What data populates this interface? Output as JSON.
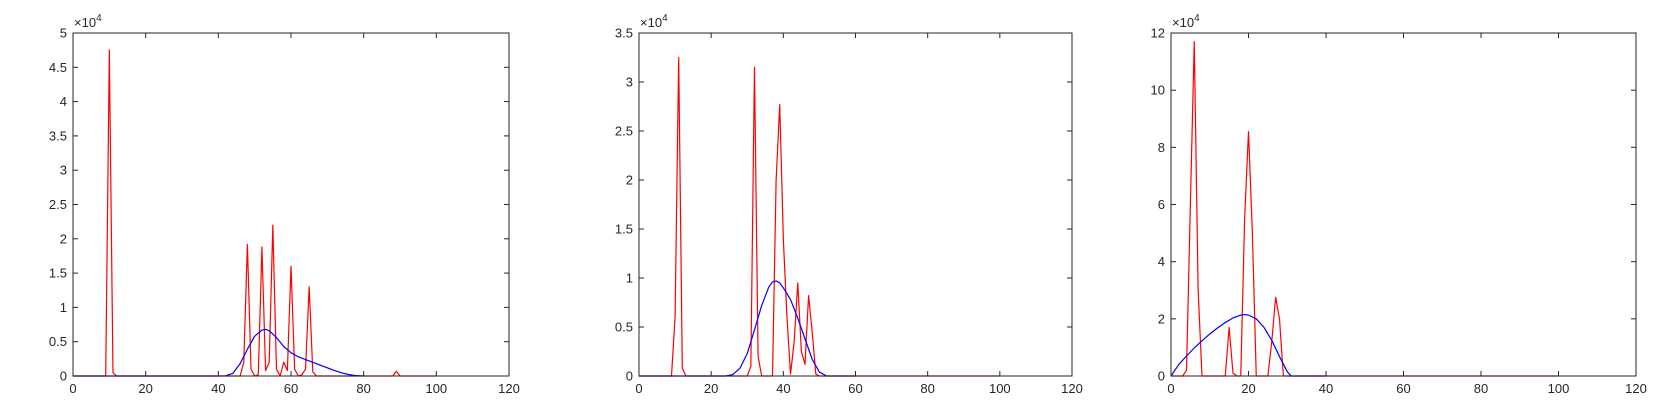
{
  "chart_data": [
    {
      "type": "line",
      "xlim": [
        0,
        120
      ],
      "ylim": [
        0,
        50000
      ],
      "xticks": [
        0,
        20,
        40,
        60,
        80,
        100,
        120
      ],
      "yticks": [
        0,
        5000,
        10000,
        15000,
        20000,
        25000,
        30000,
        35000,
        40000,
        45000,
        50000
      ],
      "xtick_labels": [
        "0",
        "20",
        "40",
        "60",
        "80",
        "100",
        "120"
      ],
      "ytick_labels": [
        "0",
        "0.5",
        "1",
        "1.5",
        "2",
        "2.5",
        "3",
        "3.5",
        "4",
        "4.5",
        "5"
      ],
      "y_exponent_base": "×10",
      "y_exponent_power": "4",
      "grid": false,
      "series": [
        {
          "color": "#ff0000",
          "x": [
            0,
            9,
            10,
            11,
            12,
            13,
            46,
            47,
            48,
            49,
            50,
            51,
            52,
            53,
            54,
            55,
            56,
            57,
            58,
            59,
            60,
            61,
            62,
            63,
            64,
            65,
            66,
            67,
            88,
            89,
            90,
            100
          ],
          "y": [
            0,
            0,
            47500,
            500,
            0,
            0,
            0,
            2000,
            19200,
            1000,
            0,
            200,
            18800,
            800,
            2000,
            22000,
            1000,
            0,
            2000,
            800,
            16000,
            1000,
            0,
            200,
            1000,
            13000,
            600,
            0,
            0,
            700,
            0,
            0
          ]
        },
        {
          "color": "#0000ff",
          "x": [
            0,
            40,
            42,
            44,
            46,
            48,
            50,
            52,
            53,
            54,
            56,
            58,
            60,
            62,
            64,
            66,
            68,
            70,
            72,
            74,
            76,
            78,
            80
          ],
          "y": [
            0,
            0,
            30,
            400,
            1800,
            3900,
            5800,
            6700,
            6800,
            6600,
            5600,
            4300,
            3400,
            2800,
            2400,
            2000,
            1600,
            1200,
            800,
            450,
            200,
            50,
            0
          ]
        }
      ]
    },
    {
      "type": "line",
      "xlim": [
        0,
        120
      ],
      "ylim": [
        0,
        35000
      ],
      "xticks": [
        0,
        20,
        40,
        60,
        80,
        100,
        120
      ],
      "yticks": [
        0,
        5000,
        10000,
        15000,
        20000,
        25000,
        30000,
        35000
      ],
      "xtick_labels": [
        "0",
        "20",
        "40",
        "60",
        "80",
        "100",
        "120"
      ],
      "ytick_labels": [
        "0",
        "0.5",
        "1",
        "1.5",
        "2",
        "2.5",
        "3",
        "3.5"
      ],
      "y_exponent_base": "×10",
      "y_exponent_power": "4",
      "grid": false,
      "series": [
        {
          "color": "#ff0000",
          "x": [
            0,
            9,
            10,
            11,
            12,
            13,
            30,
            31,
            32,
            33,
            34,
            37,
            38,
            39,
            40,
            41,
            42,
            43,
            44,
            45,
            46,
            47,
            48,
            49,
            50,
            100
          ],
          "y": [
            0,
            0,
            6000,
            32500,
            800,
            0,
            0,
            1000,
            31500,
            2000,
            0,
            0,
            20000,
            27700,
            14000,
            6000,
            200,
            3500,
            9500,
            2500,
            1200,
            8200,
            4500,
            200,
            0,
            0
          ]
        },
        {
          "color": "#0000ff",
          "x": [
            0,
            24,
            26,
            28,
            30,
            32,
            34,
            36,
            37,
            38,
            39,
            40,
            42,
            44,
            46,
            48,
            50,
            52,
            60
          ],
          "y": [
            0,
            0,
            150,
            800,
            2300,
            4700,
            7200,
            9100,
            9600,
            9700,
            9500,
            9000,
            7800,
            5900,
            3800,
            1700,
            400,
            0,
            0
          ]
        }
      ]
    },
    {
      "type": "line",
      "xlim": [
        0,
        120
      ],
      "ylim": [
        0,
        120000
      ],
      "xticks": [
        0,
        20,
        40,
        60,
        80,
        100,
        120
      ],
      "yticks": [
        0,
        20000,
        40000,
        60000,
        80000,
        100000,
        120000
      ],
      "xtick_labels": [
        "0",
        "20",
        "40",
        "60",
        "80",
        "100",
        "120"
      ],
      "ytick_labels": [
        "0",
        "2",
        "4",
        "6",
        "8",
        "10",
        "12"
      ],
      "y_exponent_base": "×10",
      "y_exponent_power": "4",
      "grid": false,
      "series": [
        {
          "color": "#ff0000",
          "x": [
            0,
            3,
            4,
            5,
            6,
            7,
            8,
            14,
            15,
            16,
            17,
            18,
            19,
            20,
            21,
            22,
            25,
            26,
            27,
            28,
            29,
            100
          ],
          "y": [
            0,
            0,
            2000,
            60000,
            117000,
            30000,
            0,
            0,
            17000,
            1000,
            0,
            0,
            55000,
            85500,
            50000,
            0,
            0,
            12000,
            27500,
            20000,
            0,
            0
          ]
        },
        {
          "color": "#0000ff",
          "x": [
            0,
            2,
            4,
            6,
            8,
            10,
            12,
            14,
            16,
            18,
            19,
            20,
            22,
            24,
            26,
            28,
            30,
            31,
            40
          ],
          "y": [
            0,
            4000,
            7000,
            9800,
            12300,
            14700,
            16800,
            18700,
            20300,
            21300,
            21500,
            21300,
            20000,
            17000,
            12500,
            6800,
            1500,
            0,
            0
          ]
        }
      ]
    }
  ]
}
